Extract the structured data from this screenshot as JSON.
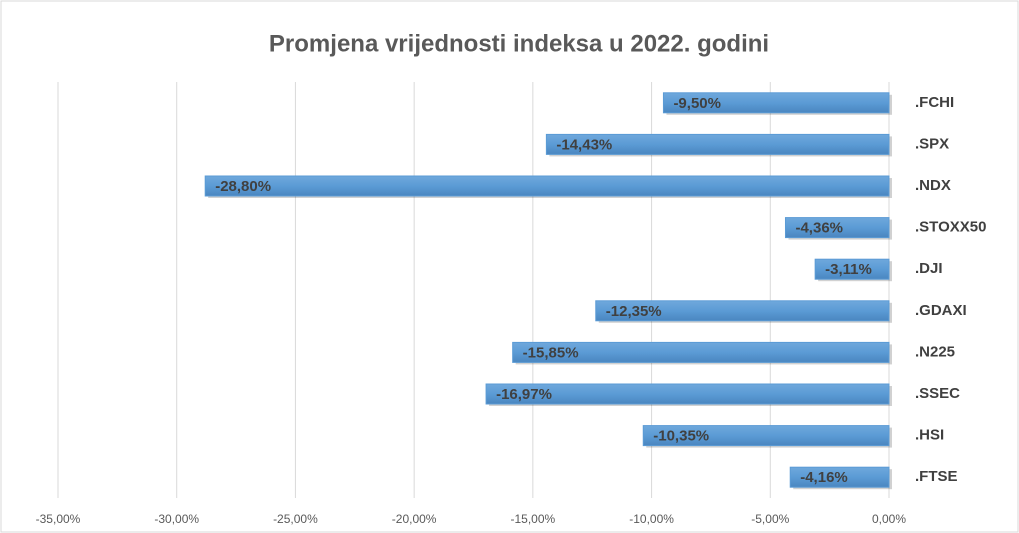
{
  "chart_data": {
    "type": "bar",
    "orientation": "horizontal",
    "title": "Promjena vrijednosti indeksa u 2022. godini",
    "categories": [
      ".FCHI",
      ".SPX",
      ".NDX",
      ".STOXX50",
      ".DJI",
      ".GDAXI",
      ".N225",
      ".SSEC",
      ".HSI",
      ".FTSE"
    ],
    "values": [
      -9.5,
      -14.43,
      -28.8,
      -4.36,
      -3.11,
      -12.35,
      -15.85,
      -16.97,
      -10.35,
      -4.16
    ],
    "value_labels": [
      "-9,50%",
      "-14,43%",
      "-28,80%",
      "-4,36%",
      "-3,11%",
      "-12,35%",
      "-15,85%",
      "-16,97%",
      "-10,35%",
      "-4,16%"
    ],
    "color": "#5b9bd5",
    "xlim": [
      -35,
      0
    ],
    "xticks": [
      {
        "value": -35,
        "label": "-35,00%"
      },
      {
        "value": -30,
        "label": "-30,00%"
      },
      {
        "value": -25,
        "label": "-25,00%"
      },
      {
        "value": -20,
        "label": "-20,00%"
      },
      {
        "value": -15,
        "label": "-15,00%"
      },
      {
        "value": -10,
        "label": "-10,00%"
      },
      {
        "value": -5,
        "label": "-5,00%"
      },
      {
        "value": 0,
        "label": "0,00%"
      }
    ],
    "grid": true
  }
}
